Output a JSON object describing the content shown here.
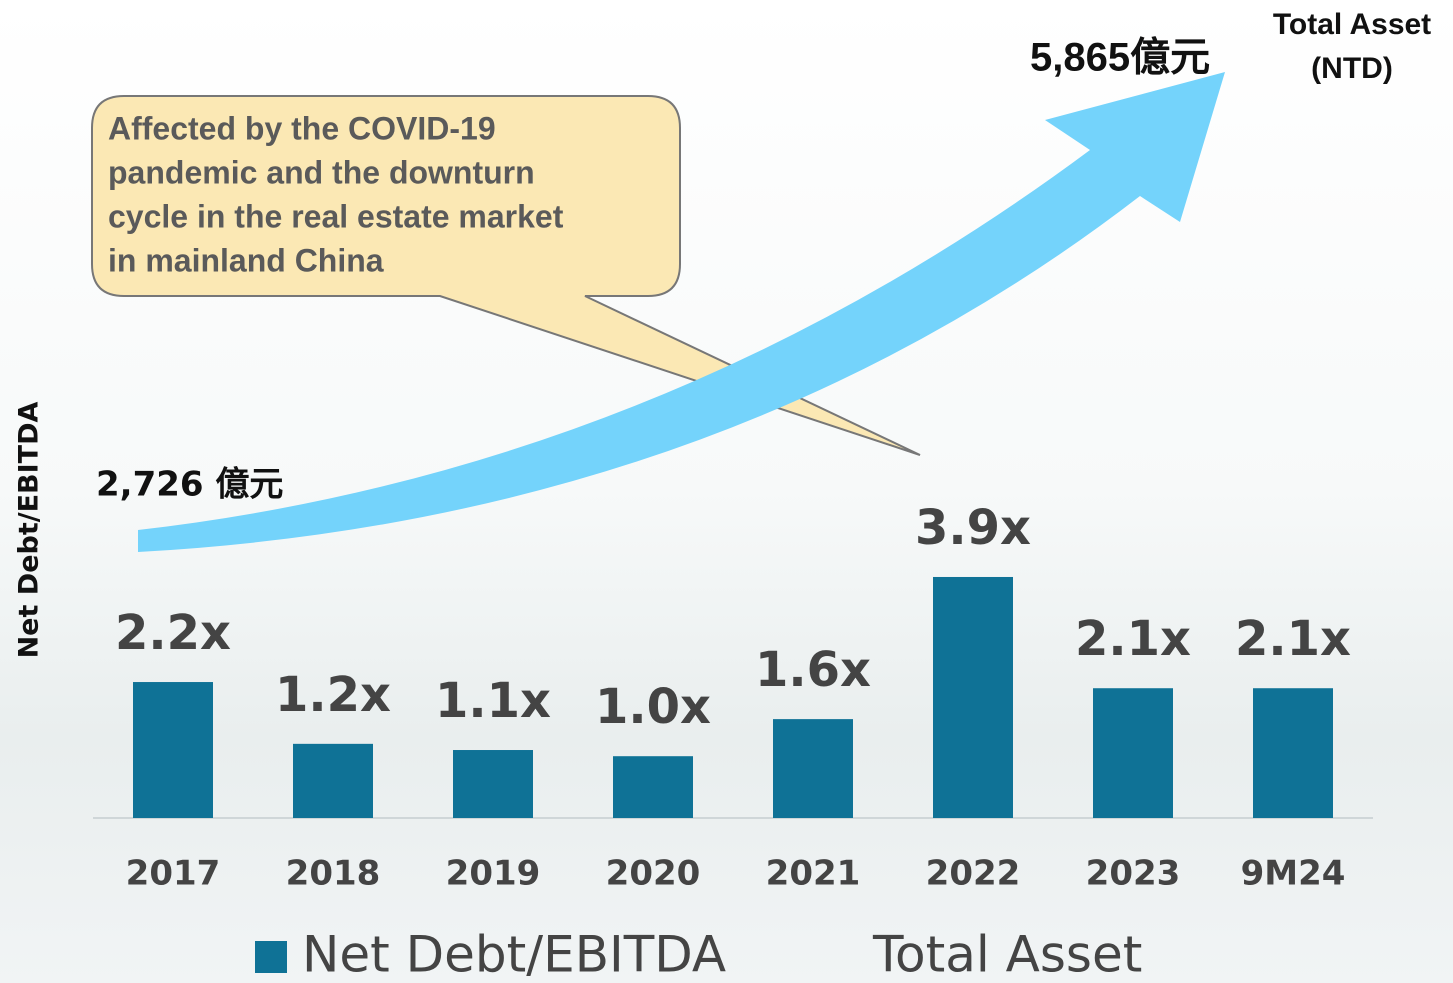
{
  "chart_data": {
    "type": "bar",
    "y_axis_label": "Net Debt/EBITDA",
    "categories": [
      "2017",
      "2018",
      "2019",
      "2020",
      "2021",
      "2022",
      "2023",
      "9M24"
    ],
    "series": [
      {
        "name": "Net Debt/EBITDA",
        "color": "#0f7296",
        "values": [
          2.2,
          1.2,
          1.1,
          1.0,
          1.6,
          3.9,
          2.1,
          2.1
        ],
        "value_labels": [
          "2.2x",
          "1.2x",
          "1.1x",
          "1.0x",
          "1.6x",
          "3.9x",
          "2.1x",
          "2.1x"
        ]
      }
    ],
    "total_asset": {
      "name": "Total Asset",
      "color": "#74d3fb",
      "unit_label": [
        "Total Asset",
        "(NTD)"
      ],
      "values": [
        2726,
        5865
      ],
      "value_labels": [
        "2,726 億元",
        "5,865億元"
      ]
    },
    "annotation": [
      "Affected by the COVID-19",
      "pandemic and the downturn",
      "cycle in the real estate market",
      "in mainland China"
    ]
  }
}
